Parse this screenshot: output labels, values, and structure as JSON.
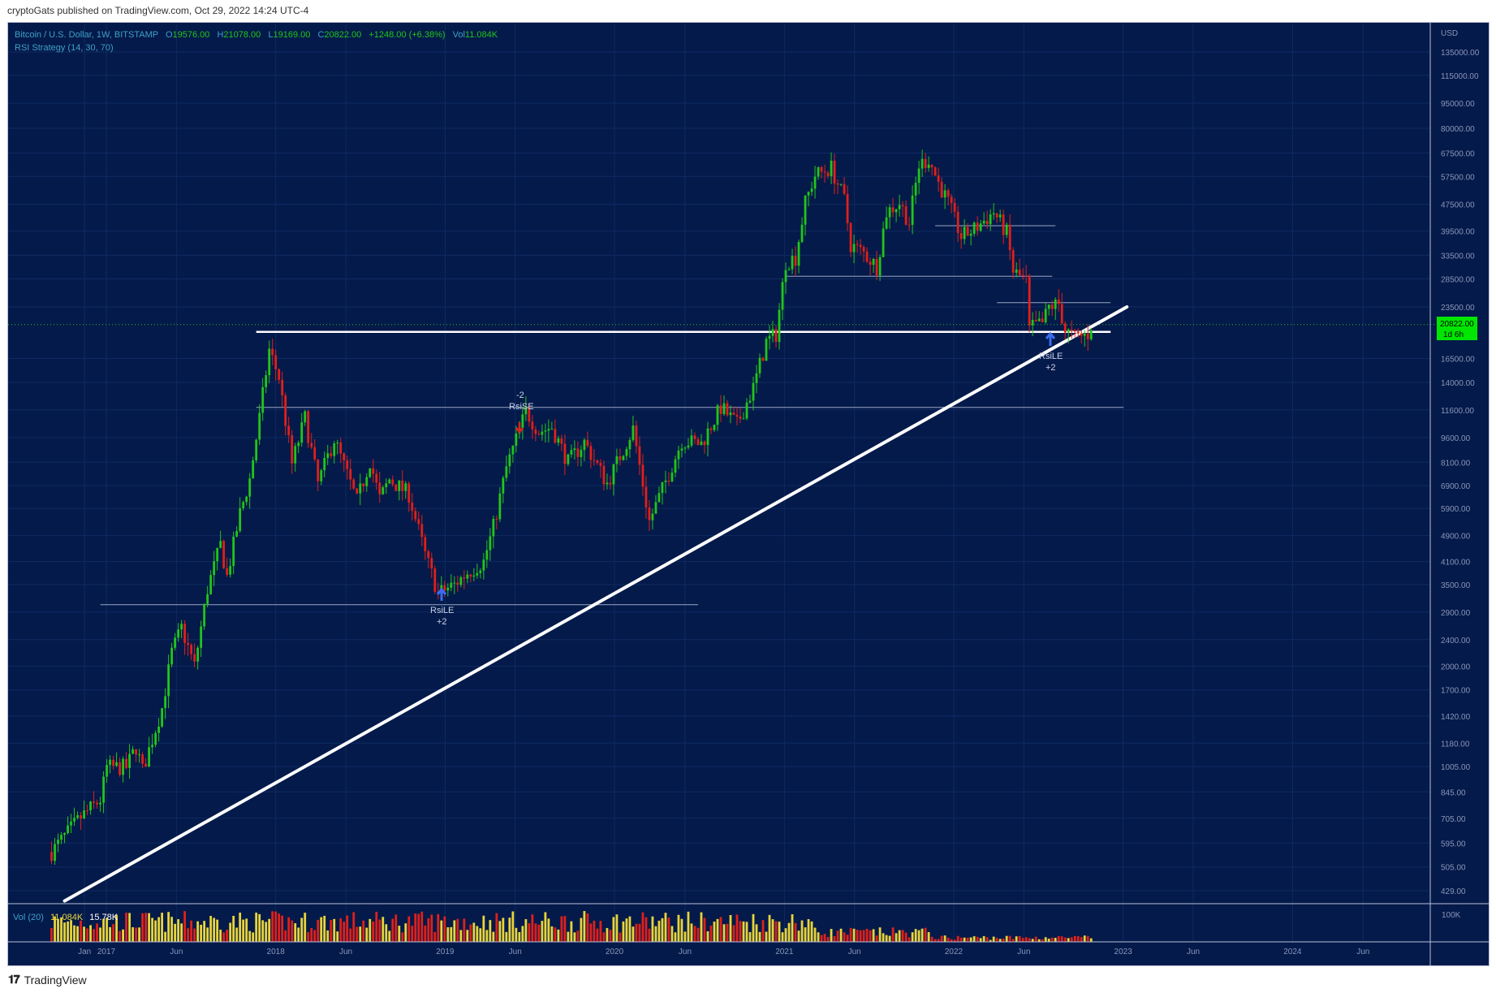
{
  "header": {
    "published_by": "cryptoGats published on TradingView.com, Oct 29, 2022 14:24 UTC-4"
  },
  "legend": {
    "symbol": "Bitcoin / U.S. Dollar, 1W, BITSTAMP",
    "open_label": "O",
    "open": "19576.00",
    "high_label": "H",
    "high": "21078.00",
    "low_label": "L",
    "low": "19169.00",
    "close_label": "C",
    "close": "20822.00",
    "change": "+1248.00 (+6.38%)",
    "vol_label": "Vol",
    "vol": "11.084K",
    "indicator": "RSI Strategy (14, 30, 70)"
  },
  "price_axis": {
    "currency": "USD",
    "current_price": "20822.00",
    "countdown": "1d 6h"
  },
  "volume_pane": {
    "label": "Vol (20)",
    "value_1": "11.084K",
    "value_2": "15.78K",
    "axis_label": "100K"
  },
  "annotations": {
    "rsile_2018_label": "RsiLE",
    "rsile_2018_qty": "+2",
    "rsise_2019_qty": "-2",
    "rsise_2019_label": "RsiSE",
    "rsile_2022_label": "RsiLE",
    "rsile_2022_qty": "+2"
  },
  "footer": {
    "brand": "TradingView"
  },
  "colors": {
    "background": "#041a4a",
    "up": "#22c51a",
    "down": "#e0201a",
    "volume_up": "#e8d43a",
    "price_tag": "#00e600",
    "trendline": "#ffffff"
  },
  "chart_data": {
    "type": "candlestick",
    "interval": "1W",
    "y_scale": "log",
    "ylim": [
      380,
      170000
    ],
    "y_ticks": [
      135000,
      115000,
      95000,
      80000,
      67500,
      57500,
      47500,
      39500,
      33500,
      28500,
      23500,
      16500,
      14000,
      11600,
      9600,
      8100,
      6900,
      5900,
      4900,
      4100,
      3500,
      2900,
      2400,
      2000,
      1700,
      1420,
      1180,
      1005,
      845,
      705,
      595,
      505,
      429
    ],
    "y_tick_labels": [
      "135000.00",
      "115000.00",
      "95000.00",
      "80000.00",
      "67500.00",
      "57500.00",
      "47500.00",
      "39500.00",
      "33500.00",
      "28500.00",
      "23500.00",
      "16500.00",
      "14000.00",
      "11600.00",
      "9600.00",
      "8100.00",
      "6900.00",
      "5900.00",
      "4900.00",
      "4100.00",
      "3500.00",
      "2900.00",
      "2400.00",
      "2000.00",
      "1700.00",
      "1420.00",
      "1180.00",
      "1005.00",
      "845.00",
      "705.00",
      "595.00",
      "505.00",
      "429.00"
    ],
    "x_ticks": [
      "Jan",
      "2017",
      "Jun",
      "2018",
      "Jun",
      "2019",
      "Jun",
      "2020",
      "Jun",
      "2021",
      "Jun",
      "2022",
      "Jun",
      "2023",
      "Jun",
      "2024",
      "Jun"
    ],
    "x_tick_dates": [
      "2016-11-15",
      "2017-01-01",
      "2017-06-01",
      "2018-01-01",
      "2018-06-01",
      "2019-01-01",
      "2019-06-01",
      "2020-01-01",
      "2020-06-01",
      "2021-01-01",
      "2021-06-01",
      "2022-01-01",
      "2022-06-01",
      "2023-01-01",
      "2023-06-01",
      "2024-01-01",
      "2024-06-01"
    ],
    "anchors": [
      {
        "date": "2016-09-05",
        "price": 560
      },
      {
        "date": "2016-11-07",
        "price": 710
      },
      {
        "date": "2016-12-19",
        "price": 800
      },
      {
        "date": "2017-01-02",
        "price": 1000
      },
      {
        "date": "2017-02-13",
        "price": 1000
      },
      {
        "date": "2017-03-06",
        "price": 1150
      },
      {
        "date": "2017-03-20",
        "price": 980
      },
      {
        "date": "2017-05-01",
        "price": 1500
      },
      {
        "date": "2017-05-22",
        "price": 2200
      },
      {
        "date": "2017-06-12",
        "price": 2600
      },
      {
        "date": "2017-07-10",
        "price": 2000
      },
      {
        "date": "2017-08-07",
        "price": 3400
      },
      {
        "date": "2017-09-04",
        "price": 4600
      },
      {
        "date": "2017-09-18",
        "price": 3700
      },
      {
        "date": "2017-10-16",
        "price": 5700
      },
      {
        "date": "2017-11-06",
        "price": 7200
      },
      {
        "date": "2017-11-27",
        "price": 11000
      },
      {
        "date": "2017-12-18",
        "price": 17500
      },
      {
        "date": "2018-01-08",
        "price": 14500
      },
      {
        "date": "2018-02-05",
        "price": 8000
      },
      {
        "date": "2018-03-05",
        "price": 11000
      },
      {
        "date": "2018-04-02",
        "price": 7000
      },
      {
        "date": "2018-05-07",
        "price": 9500
      },
      {
        "date": "2018-06-25",
        "price": 6200
      },
      {
        "date": "2018-07-23",
        "price": 8200
      },
      {
        "date": "2018-08-13",
        "price": 6300
      },
      {
        "date": "2018-09-03",
        "price": 7200
      },
      {
        "date": "2018-10-15",
        "price": 6500
      },
      {
        "date": "2018-11-19",
        "price": 4300
      },
      {
        "date": "2018-12-17",
        "price": 3300
      },
      {
        "date": "2019-01-21",
        "price": 3500
      },
      {
        "date": "2019-02-18",
        "price": 3800
      },
      {
        "date": "2019-03-25",
        "price": 4100
      },
      {
        "date": "2019-04-15",
        "price": 5200
      },
      {
        "date": "2019-05-13",
        "price": 7800
      },
      {
        "date": "2019-06-24",
        "price": 11500
      },
      {
        "date": "2019-07-22",
        "price": 10000
      },
      {
        "date": "2019-08-19",
        "price": 10300
      },
      {
        "date": "2019-09-23",
        "price": 8100
      },
      {
        "date": "2019-10-28",
        "price": 9300
      },
      {
        "date": "2019-12-16",
        "price": 7000
      },
      {
        "date": "2020-02-10",
        "price": 10200
      },
      {
        "date": "2020-03-16",
        "price": 5400
      },
      {
        "date": "2020-04-27",
        "price": 7500
      },
      {
        "date": "2020-05-25",
        "price": 9400
      },
      {
        "date": "2020-07-06",
        "price": 9200
      },
      {
        "date": "2020-08-17",
        "price": 11800
      },
      {
        "date": "2020-09-21",
        "price": 10500
      },
      {
        "date": "2020-10-26",
        "price": 13500
      },
      {
        "date": "2020-11-23",
        "price": 18500
      },
      {
        "date": "2020-12-14",
        "price": 19500
      },
      {
        "date": "2021-01-04",
        "price": 32000
      },
      {
        "date": "2021-01-25",
        "price": 33000
      },
      {
        "date": "2021-02-15",
        "price": 48000
      },
      {
        "date": "2021-03-08",
        "price": 58000
      },
      {
        "date": "2021-04-12",
        "price": 61000
      },
      {
        "date": "2021-05-10",
        "price": 49000
      },
      {
        "date": "2021-05-24",
        "price": 36000
      },
      {
        "date": "2021-06-21",
        "price": 34000
      },
      {
        "date": "2021-07-19",
        "price": 31000
      },
      {
        "date": "2021-08-09",
        "price": 45000
      },
      {
        "date": "2021-09-06",
        "price": 48000
      },
      {
        "date": "2021-09-27",
        "price": 42000
      },
      {
        "date": "2021-10-18",
        "price": 62000
      },
      {
        "date": "2021-11-08",
        "price": 65000
      },
      {
        "date": "2021-11-29",
        "price": 55000
      },
      {
        "date": "2021-12-20",
        "price": 48000
      },
      {
        "date": "2022-01-17",
        "price": 38000
      },
      {
        "date": "2022-02-14",
        "price": 40000
      },
      {
        "date": "2022-03-28",
        "price": 45000
      },
      {
        "date": "2022-04-25",
        "price": 39000
      },
      {
        "date": "2022-05-09",
        "price": 30000
      },
      {
        "date": "2022-06-06",
        "price": 28000
      },
      {
        "date": "2022-06-13",
        "price": 20000
      },
      {
        "date": "2022-06-20",
        "price": 20500
      },
      {
        "date": "2022-07-11",
        "price": 21000
      },
      {
        "date": "2022-07-25",
        "price": 23500
      },
      {
        "date": "2022-08-15",
        "price": 24000
      },
      {
        "date": "2022-08-29",
        "price": 20000
      },
      {
        "date": "2022-09-19",
        "price": 19000
      },
      {
        "date": "2022-10-17",
        "price": 19500
      },
      {
        "date": "2022-10-24",
        "price": 20822
      }
    ],
    "support_resistance_lines": [
      {
        "price": 19800,
        "from": "2017-11-20",
        "to": "2022-12-05",
        "style": "thick"
      },
      {
        "price": 11800,
        "from": "2017-11-20",
        "to": "2023-01-02",
        "style": "thin"
      },
      {
        "price": 3050,
        "from": "2016-12-19",
        "to": "2020-06-29",
        "style": "thin"
      },
      {
        "price": 29000,
        "from": "2021-01-04",
        "to": "2022-08-01",
        "style": "thin"
      },
      {
        "price": 41000,
        "from": "2021-11-22",
        "to": "2022-08-08",
        "style": "thin"
      },
      {
        "price": 24200,
        "from": "2022-04-04",
        "to": "2022-12-05",
        "style": "thin"
      }
    ],
    "trendline": {
      "from": {
        "date": "2016-10-03",
        "price": 400
      },
      "to": {
        "date": "2023-01-09",
        "price": 23500
      }
    }
  }
}
